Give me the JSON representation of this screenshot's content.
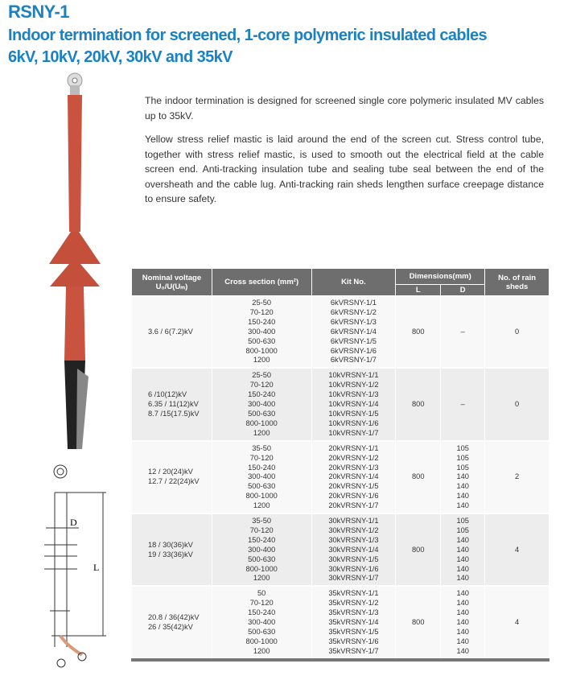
{
  "title": {
    "model": "RSNY-1",
    "subtitle": "Indoor termination for screened, 1-core polymeric insulated cables",
    "voltages": "6kV, 10kV, 20kV, 30kV and 35kV"
  },
  "description": [
    "The indoor termination is designed for screened single core polymeric insulated MV cables up to 35kV.",
    "Yellow stress relief mastic is laid around the end of the screen cut. Stress control tube, together with stress relief mastic, is used to smooth out the electrical field at the cable screen end. Anti-tracking insulation tube and sealing tube seal between the end of the oversheath and the cable lug. Anti-tracking rain sheds lengthen surface creepage distance to ensure safety."
  ],
  "drawing": {
    "label_d": "D",
    "label_l": "L"
  },
  "table": {
    "headers": {
      "voltage_line1": "Nominal voltage",
      "voltage_line2": "U₀/U(Uₘ)",
      "cross": "Cross section (mm²)",
      "kit": "Kit No.",
      "dims": "Dimensions(mm)",
      "L": "L",
      "D": "D",
      "sheds": "No. of rain sheds"
    },
    "rows": [
      {
        "voltage": [
          "3.6 / 6(7.2)kV"
        ],
        "cross": [
          "25-50",
          "70-120",
          "150-240",
          "300-400",
          "500-630",
          "800-1000",
          "1200"
        ],
        "kit": [
          "6kVRSNY-1/1",
          "6kVRSNY-1/2",
          "6kVRSNY-1/3",
          "6kVRSNY-1/4",
          "6kVRSNY-1/5",
          "6kVRSNY-1/6",
          "6kVRSNY-1/7"
        ],
        "L": "800",
        "D": [
          "–"
        ],
        "sheds": "0"
      },
      {
        "voltage": [
          "6 /10(12)kV",
          "6.35 / 11(12)kV",
          "8.7 /15(17.5)kV"
        ],
        "cross": [
          "25-50",
          "70-120",
          "150-240",
          "300-400",
          "500-630",
          "800-1000",
          "1200"
        ],
        "kit": [
          "10kVRSNY-1/1",
          "10kVRSNY-1/2",
          "10kVRSNY-1/3",
          "10kVRSNY-1/4",
          "10kVRSNY-1/5",
          "10kVRSNY-1/6",
          "10kVRSNY-1/7"
        ],
        "L": "800",
        "D": [
          "–"
        ],
        "sheds": "0"
      },
      {
        "voltage": [
          "12 / 20(24)kV",
          "12.7 / 22(24)kV"
        ],
        "cross": [
          "35-50",
          "70-120",
          "150-240",
          "300-400",
          "500-630",
          "800-1000",
          "1200"
        ],
        "kit": [
          "20kVRSNY-1/1",
          "20kVRSNY-1/2",
          "20kVRSNY-1/3",
          "20kVRSNY-1/4",
          "20kVRSNY-1/5",
          "20kVRSNY-1/6",
          "20kVRSNY-1/7"
        ],
        "L": "800",
        "D": [
          "105",
          "105",
          "105",
          "140",
          "140",
          "140",
          "140"
        ],
        "sheds": "2"
      },
      {
        "voltage": [
          "18 / 30(36)kV",
          "19 / 33(36)kV"
        ],
        "cross": [
          "35-50",
          "70-120",
          "150-240",
          "300-400",
          "500-630",
          "800-1000",
          "1200"
        ],
        "kit": [
          "30kVRSNY-1/1",
          "30kVRSNY-1/2",
          "30kVRSNY-1/3",
          "30kVRSNY-1/4",
          "30kVRSNY-1/5",
          "30kVRSNY-1/6",
          "30kVRSNY-1/7"
        ],
        "L": "800",
        "D": [
          "105",
          "105",
          "140",
          "140",
          "140",
          "140",
          "140"
        ],
        "sheds": "4"
      },
      {
        "voltage": [
          "20.8 / 36(42)kV",
          "26 / 35(42)kV"
        ],
        "cross": [
          "50",
          "70-120",
          "150-240",
          "300-400",
          "500-630",
          "800-1000",
          "1200"
        ],
        "kit": [
          "35kVRSNY-1/1",
          "35kVRSNY-1/2",
          "35kVRSNY-1/3",
          "35kVRSNY-1/4",
          "35kVRSNY-1/5",
          "35kVRSNY-1/6",
          "35kVRSNY-1/7"
        ],
        "L": "800",
        "D": [
          "140",
          "140",
          "140",
          "140",
          "140",
          "140",
          "140"
        ],
        "sheds": "4"
      }
    ]
  },
  "colors": {
    "title": "#1a82c4",
    "header_bg": "#6e6e6e",
    "product_red": "#c9533f"
  }
}
